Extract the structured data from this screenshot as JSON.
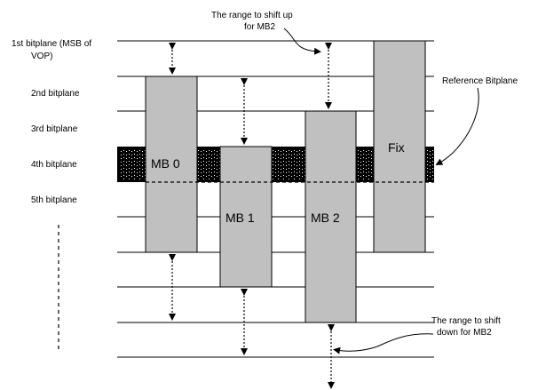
{
  "bitplane_labels": [
    {
      "lines": [
        "1st bitplane (MSB of",
        "VOP)"
      ]
    },
    {
      "lines": [
        "2nd bitplane"
      ]
    },
    {
      "lines": [
        "3rd bitplane"
      ]
    },
    {
      "lines": [
        "4th bitplane"
      ]
    },
    {
      "lines": [
        "5th bitplane"
      ]
    }
  ],
  "blocks": [
    {
      "label": "MB 0"
    },
    {
      "label": "MB 1"
    },
    {
      "label": "MB 2"
    },
    {
      "label": "Fix"
    }
  ],
  "annotations": {
    "shift_up": [
      "The range to shift up",
      "for MB2"
    ],
    "reference": "Reference Bitplane",
    "shift_down": [
      "The range to shift",
      "down for MB2"
    ]
  },
  "colors": {
    "block_fill": "#c0c0c0",
    "reference_band": "#000000",
    "lines": "#000000"
  }
}
